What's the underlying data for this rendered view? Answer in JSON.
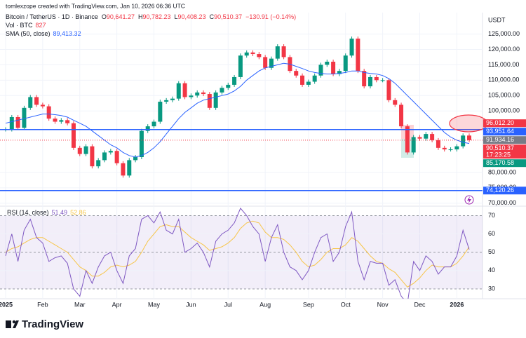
{
  "header": {
    "credit": "tomlexzope created with TradingView.com, Jan 10, 2026 06:36 UTC",
    "currency": "USDT",
    "symbol": "Bitcoin / TetherUS · 1D · Binance",
    "ohlc": [
      {
        "key": "O",
        "value": "90,641.27"
      },
      {
        "key": "H",
        "value": "90,782.23"
      },
      {
        "key": "L",
        "value": "90,408.23"
      },
      {
        "key": "C",
        "value": "90,510.37"
      }
    ],
    "change": "−130.91 (−0.14%)",
    "volume_label": "Vol · BTC",
    "volume_value": "827",
    "sma_label": "SMA (50, close)",
    "sma_value": "89,413.32"
  },
  "price_chart": {
    "type": "candlestick",
    "categories": [
      "2025",
      null,
      null,
      null,
      null,
      null,
      "Feb",
      null,
      null,
      null,
      null,
      null,
      "Mar",
      null,
      null,
      null,
      null,
      null,
      "Apr",
      null,
      null,
      null,
      null,
      null,
      "May",
      null,
      null,
      null,
      null,
      null,
      "Jun",
      null,
      null,
      null,
      null,
      null,
      "Jul",
      null,
      null,
      null,
      null,
      null,
      "Aug",
      null,
      null,
      null,
      null,
      null,
      null,
      "Sep",
      null,
      null,
      null,
      null,
      null,
      "Oct",
      null,
      null,
      null,
      null,
      null,
      "Nov",
      null,
      null,
      null,
      null,
      null,
      "Dec",
      null,
      null,
      null,
      null,
      null,
      "2026",
      null,
      null
    ],
    "closes": [
      94000,
      98000,
      94500,
      101000,
      104500,
      102000,
      101500,
      97500,
      96500,
      97000,
      96000,
      88000,
      86000,
      88500,
      82000,
      84000,
      86500,
      87000,
      83000,
      79000,
      84000,
      85000,
      93500,
      95000,
      96500,
      103000,
      103500,
      104000,
      109000,
      104500,
      105000,
      106000,
      105500,
      101000,
      106000,
      107500,
      108500,
      111000,
      118000,
      119000,
      118500,
      117500,
      114000,
      117000,
      121000,
      117500,
      113000,
      111500,
      108500,
      109500,
      111500,
      115000,
      116000,
      112000,
      113000,
      118000,
      123500,
      113000,
      108000,
      111000,
      110000,
      110000,
      103500,
      102000,
      95000,
      86500,
      91500,
      91000,
      92500,
      90500,
      88000,
      87500,
      87500,
      88500,
      92000,
      90500
    ],
    "sma": [
      96000,
      96500,
      97000,
      97500,
      98000,
      98500,
      99000,
      99000,
      98800,
      98500,
      98000,
      97000,
      96000,
      95000,
      93500,
      92000,
      90500,
      89000,
      88000,
      86500,
      85500,
      85000,
      85500,
      86500,
      88000,
      90000,
      92500,
      95000,
      97500,
      99500,
      101000,
      102500,
      103500,
      104000,
      104500,
      105000,
      105500,
      106500,
      108000,
      110000,
      111500,
      113000,
      114000,
      114500,
      115000,
      115500,
      115200,
      114500,
      113800,
      113000,
      112500,
      112200,
      112000,
      112000,
      112200,
      112500,
      113000,
      113000,
      112500,
      112200,
      112000,
      111500,
      110500,
      109000,
      107000,
      105000,
      103000,
      101000,
      99000,
      97000,
      95000,
      93000,
      91500,
      90500,
      89800,
      89413.32
    ],
    "up_color": "#089981",
    "down_color": "#f23645",
    "sma_color": "#2962ff",
    "ylim": [
      69500,
      131500
    ],
    "yticks": [
      {
        "value": 125000,
        "label": "125,000.00"
      },
      {
        "value": 120000,
        "label": "120,000.00"
      },
      {
        "value": 115000,
        "label": "115,000.00"
      },
      {
        "value": 110000,
        "label": "110,000.00"
      },
      {
        "value": 105000,
        "label": "105,000.00"
      },
      {
        "value": 100000,
        "label": "100,000.00"
      },
      {
        "value": 80000,
        "label": "80,000.00"
      },
      {
        "value": 75000,
        "label": "75,000.00"
      },
      {
        "value": 70000,
        "label": "70,000.00"
      }
    ],
    "tags": [
      {
        "value": 96012.2,
        "label": "96,012.20",
        "color": "#f23645"
      },
      {
        "value": 93951.64,
        "label": "93,951.64",
        "color": "#2962ff",
        "line": "solid"
      },
      {
        "value": 91934.16,
        "label": "91,934.16",
        "color": "#787b86"
      },
      {
        "value": 90510.37,
        "label": "90,510.37",
        "color": "#f23645",
        "line": "dotted",
        "sub": "17:23:25"
      },
      {
        "value": 85170.58,
        "label": "85,170.58",
        "color": "#089981"
      },
      {
        "value": 74120.26,
        "label": "74,120.26",
        "color": "#2962ff",
        "line": "solid"
      }
    ]
  },
  "rsi_chart": {
    "type": "line",
    "title": "RSI (14, close)",
    "rsi_value": "51.49",
    "sma_value": "52.86",
    "rsi_color": "#7e57c2",
    "sma_color": "#f7c548",
    "rsi": [
      48,
      60,
      45,
      62,
      68,
      58,
      55,
      45,
      47,
      48,
      44,
      30,
      26,
      40,
      33,
      42,
      48,
      50,
      40,
      33,
      48,
      52,
      68,
      70,
      66,
      72,
      62,
      60,
      68,
      50,
      52,
      55,
      50,
      42,
      56,
      60,
      62,
      66,
      74,
      70,
      64,
      60,
      45,
      58,
      65,
      50,
      42,
      40,
      35,
      40,
      50,
      58,
      60,
      45,
      50,
      64,
      72,
      45,
      35,
      45,
      44,
      44,
      32,
      35,
      26,
      22,
      45,
      40,
      48,
      45,
      38,
      42,
      42,
      48,
      62,
      51.49
    ],
    "rsi_sma": [
      50,
      52,
      53,
      55,
      57,
      58,
      58,
      56,
      54,
      52,
      50,
      46,
      42,
      40,
      37,
      37,
      39,
      42,
      43,
      42,
      43,
      45,
      50,
      56,
      60,
      64,
      65,
      64,
      64,
      61,
      58,
      56,
      54,
      51,
      52,
      53,
      55,
      58,
      63,
      66,
      67,
      66,
      61,
      58,
      58,
      57,
      54,
      50,
      45,
      42,
      43,
      46,
      50,
      52,
      52,
      54,
      58,
      56,
      52,
      48,
      45,
      44,
      41,
      39,
      35,
      31,
      33,
      36,
      40,
      43,
      42,
      42,
      42,
      44,
      48,
      52.86
    ],
    "ylim": [
      25,
      74
    ],
    "yticks": [
      70,
      60,
      50,
      40,
      30
    ]
  },
  "footer": {
    "brand": "TradingView"
  }
}
